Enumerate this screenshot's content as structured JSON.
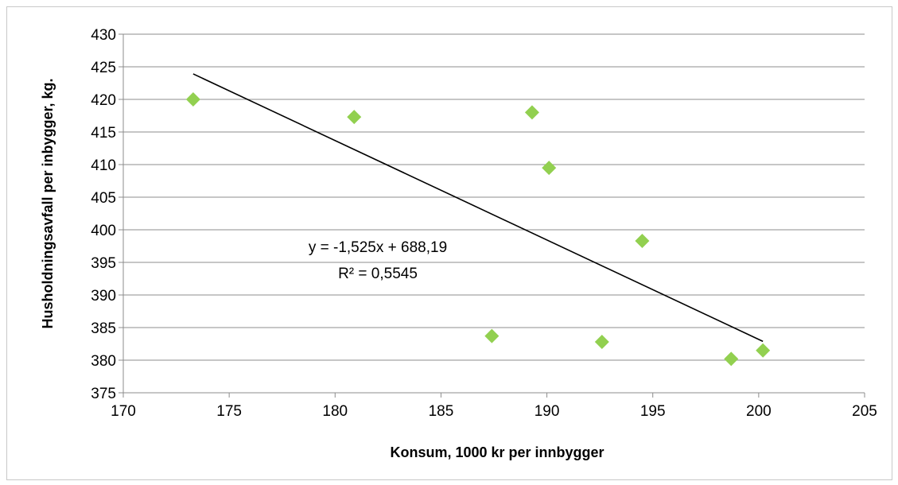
{
  "chart_data": {
    "type": "scatter",
    "title": "",
    "xlabel": "Konsum, 1000 kr per innbygger",
    "ylabel": "Husholdningsavfall per inbygger, kg.",
    "xlim": [
      170,
      205
    ],
    "ylim": [
      375,
      430
    ],
    "x_ticks": [
      "170",
      "175",
      "180",
      "185",
      "190",
      "195",
      "200",
      "205"
    ],
    "y_ticks": [
      "375",
      "380",
      "385",
      "390",
      "395",
      "400",
      "405",
      "410",
      "415",
      "420",
      "425",
      "430"
    ],
    "grid": "horizontal",
    "marker": "diamond",
    "marker_color": "#92d050",
    "series": [
      {
        "points": [
          {
            "x": 173.3,
            "y": 420.0
          },
          {
            "x": 180.9,
            "y": 417.3
          },
          {
            "x": 187.4,
            "y": 383.7
          },
          {
            "x": 189.3,
            "y": 418.0
          },
          {
            "x": 190.1,
            "y": 409.5
          },
          {
            "x": 192.6,
            "y": 382.8
          },
          {
            "x": 194.5,
            "y": 398.3
          },
          {
            "x": 198.7,
            "y": 380.2
          },
          {
            "x": 200.2,
            "y": 381.5
          }
        ]
      }
    ],
    "trendline": {
      "type": "linear",
      "slope": -1.525,
      "intercept": 688.19,
      "x_range": [
        173.3,
        200.2
      ],
      "color": "#000000",
      "equation_text": "y = -1,525x + 688,19",
      "r2_text": "R² = 0,5545"
    }
  }
}
